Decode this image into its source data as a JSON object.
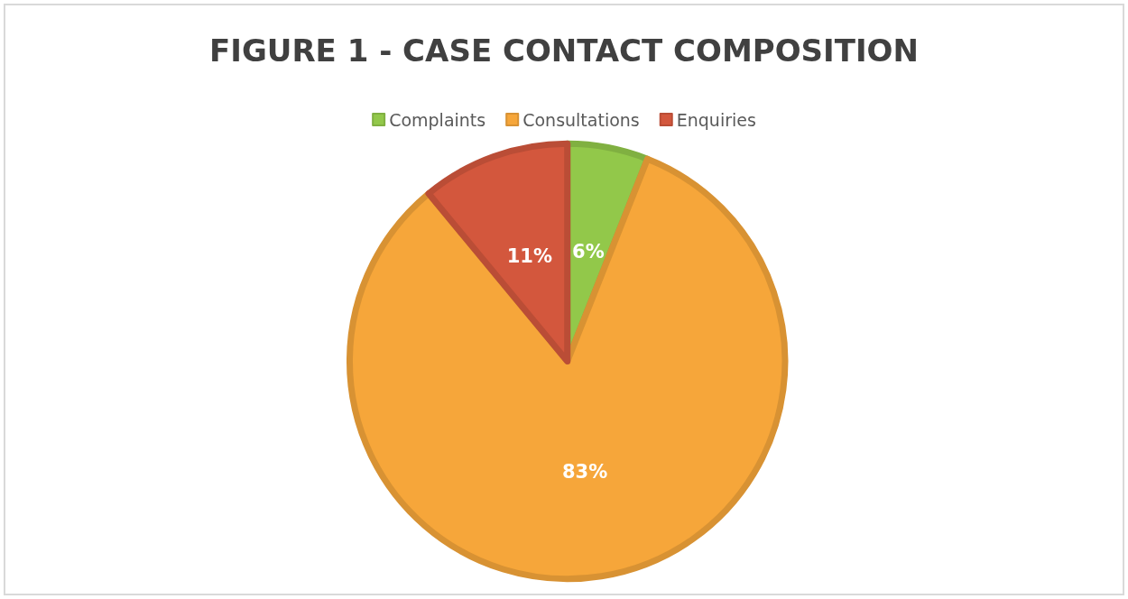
{
  "chart_data": {
    "type": "pie",
    "title": "FIGURE 1 - CASE CONTACT COMPOSITION",
    "categories": [
      "Complaints",
      "Consultations",
      "Enquiries"
    ],
    "values": [
      6,
      83,
      11
    ],
    "colors": [
      "#92c84a",
      "#f6a63a",
      "#d3573d"
    ],
    "legend": "top",
    "value_labels": [
      "6%",
      "83%",
      "11%"
    ]
  }
}
